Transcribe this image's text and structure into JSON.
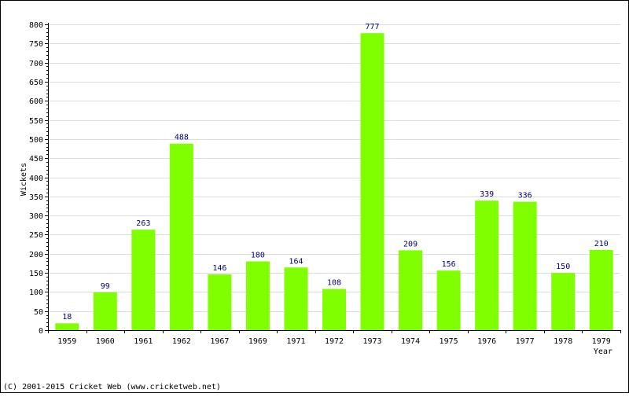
{
  "chart_data": {
    "type": "bar",
    "categories": [
      "1959",
      "1960",
      "1961",
      "1962",
      "1967",
      "1969",
      "1971",
      "1972",
      "1973",
      "1974",
      "1975",
      "1976",
      "1977",
      "1978",
      "1979"
    ],
    "values": [
      18,
      99,
      263,
      488,
      146,
      180,
      164,
      108,
      777,
      209,
      156,
      339,
      336,
      150,
      210
    ],
    "title": "",
    "xlabel": "Year",
    "ylabel": "Wickets",
    "ylim": [
      0,
      800
    ],
    "yticks": [
      0,
      50,
      100,
      150,
      200,
      250,
      300,
      350,
      400,
      450,
      500,
      550,
      600,
      650,
      700,
      750,
      800
    ],
    "grid": true,
    "legend": "none",
    "data_labels": true
  },
  "colors": {
    "bar": "#80ff00",
    "bar_edge": "#73e600",
    "grid": "#dddddd",
    "axis": "#000000",
    "data_label": "#000080",
    "border": "#000000"
  },
  "footer": {
    "copyright": "(C) 2001-2015 Cricket Web (www.cricketweb.net)"
  }
}
